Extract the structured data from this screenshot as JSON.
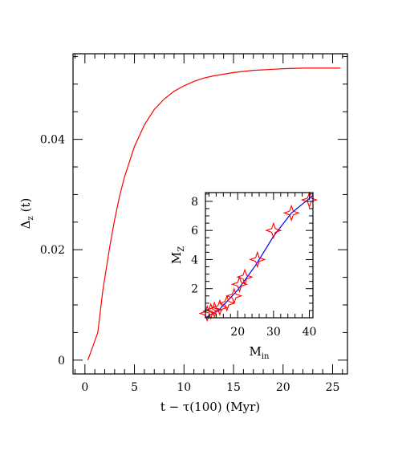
{
  "chart_data": [
    {
      "type": "line",
      "xlabel": "t − τ(100) (Myr)",
      "ylabel_main": "Δ",
      "ylabel_sub": "z",
      "ylabel_tail": " (t)",
      "xlim": [
        -1.2,
        26.5
      ],
      "ylim": [
        -0.0025,
        0.0555
      ],
      "xticks": [
        0,
        5,
        10,
        15,
        20,
        25
      ],
      "xtick_labels": [
        "0",
        "5",
        "10",
        "15",
        "20",
        "25"
      ],
      "yticks": [
        0,
        0.02,
        0.04
      ],
      "ytick_labels": [
        "0",
        "0.02",
        "0.04"
      ],
      "grid": false,
      "series": [
        {
          "color": "#ff0000",
          "x": [
            0.3,
            1.3,
            1.8,
            2.5,
            3.0,
            3.5,
            4.0,
            5.0,
            6.0,
            7.0,
            8.0,
            9.0,
            10.0,
            11.0,
            12.0,
            13.0,
            14.0,
            15.0,
            16.0,
            17.0,
            18.0,
            19.0,
            20.0,
            22.0,
            24.0,
            25.8
          ],
          "y": [
            0.0,
            0.005,
            0.0125,
            0.0205,
            0.0255,
            0.0297,
            0.0332,
            0.0387,
            0.0426,
            0.0454,
            0.0473,
            0.0487,
            0.0497,
            0.0505,
            0.0511,
            0.0515,
            0.0518,
            0.0521,
            0.0523,
            0.0525,
            0.0526,
            0.0527,
            0.0528,
            0.0529,
            0.0529,
            0.0529
          ]
        }
      ]
    },
    {
      "type": "scatter",
      "xlabel_main": "M",
      "xlabel_sub": "in",
      "ylabel_main": "M",
      "ylabel_sub": "Z",
      "xlim": [
        11,
        41
      ],
      "ylim": [
        0,
        8.6
      ],
      "xticks": [
        20,
        30,
        40
      ],
      "xtick_labels": [
        "20",
        "30",
        "40"
      ],
      "yticks": [
        2,
        4,
        6,
        8
      ],
      "ytick_labels": [
        "2",
        "4",
        "6",
        "8"
      ],
      "grid": false,
      "series": [
        {
          "marker": "four-point-star",
          "color": "#ff0000",
          "x": [
            11.5,
            12.5,
            13.5,
            15.0,
            17.0,
            19.0,
            20.5,
            22.0,
            25.5,
            30.0,
            35.0,
            40.0
          ],
          "y": [
            0.3,
            0.45,
            0.55,
            0.7,
            1.0,
            1.5,
            2.3,
            2.8,
            4.0,
            6.0,
            7.2,
            8.1
          ]
        },
        {
          "type": "line",
          "color": "#0000ff",
          "x": [
            11,
            15,
            20,
            25,
            30,
            35,
            40,
            41
          ],
          "y": [
            0.0,
            0.6,
            1.9,
            3.6,
            5.6,
            7.2,
            8.2,
            8.4
          ]
        }
      ]
    }
  ]
}
